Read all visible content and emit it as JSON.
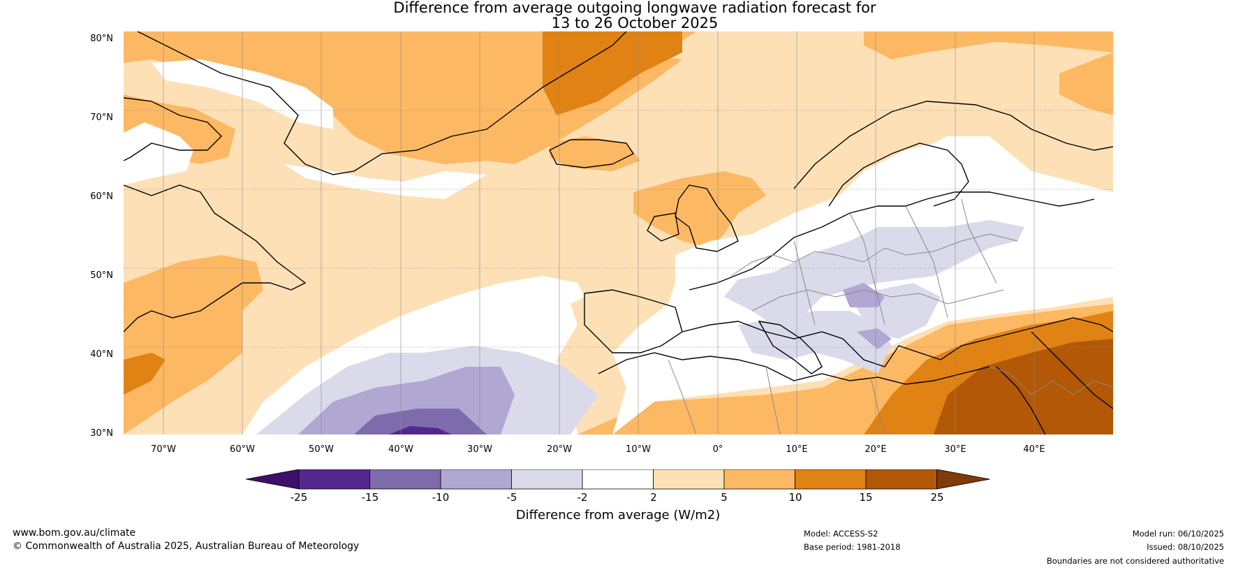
{
  "title_line1": "Difference from average outgoing longwave radiation forecast for",
  "title_line2": "13 to 26 October 2025",
  "lat_labels": [
    "80°N",
    "70°N",
    "60°N",
    "50°N",
    "40°N",
    "30°N"
  ],
  "lon_labels": [
    "70°W",
    "60°W",
    "50°W",
    "40°W",
    "30°W",
    "20°W",
    "10°W",
    "0°",
    "10°E",
    "20°E",
    "30°E",
    "40°E"
  ],
  "colorbar": {
    "title": "Difference from average (W/m2)",
    "ticks": [
      "-25",
      "-15",
      "-10",
      "-5",
      "-2",
      "2",
      "5",
      "10",
      "15",
      "25"
    ],
    "colors": [
      "#3f0f6b",
      "#54278f",
      "#7e6bac",
      "#b0a8d3",
      "#dadaeb",
      "#ffffff",
      "#fee0b6",
      "#fdb863",
      "#e08214",
      "#b35806",
      "#7f3b08"
    ]
  },
  "legend_bins": [
    {
      "range": "< -25",
      "color": "#3f0f6b"
    },
    {
      "range": "-25 to -15",
      "color": "#54278f"
    },
    {
      "range": "-15 to -10",
      "color": "#7e6bac"
    },
    {
      "range": "-10 to -5",
      "color": "#b0a8d3"
    },
    {
      "range": "-5 to -2",
      "color": "#dadaeb"
    },
    {
      "range": "-2 to 2",
      "color": "#ffffff"
    },
    {
      "range": "2 to 5",
      "color": "#fee0b6"
    },
    {
      "range": "5 to 10",
      "color": "#fdb863"
    },
    {
      "range": "10 to 15",
      "color": "#e08214"
    },
    {
      "range": "15 to 25",
      "color": "#b35806"
    },
    {
      "range": "> 25",
      "color": "#7f3b08"
    }
  ],
  "footer": {
    "website": "www.bom.gov.au/climate",
    "copyright": "© Commonwealth of Australia 2025, Australian Bureau of Meteorology",
    "model": "Model: ACCESS-S2",
    "base_period": "Base period: 1981-2018",
    "model_run": "Model run: 06/10/2025",
    "issued": "Issued: 08/10/2025",
    "disclaimer": "Boundaries are not considered authoritative"
  }
}
